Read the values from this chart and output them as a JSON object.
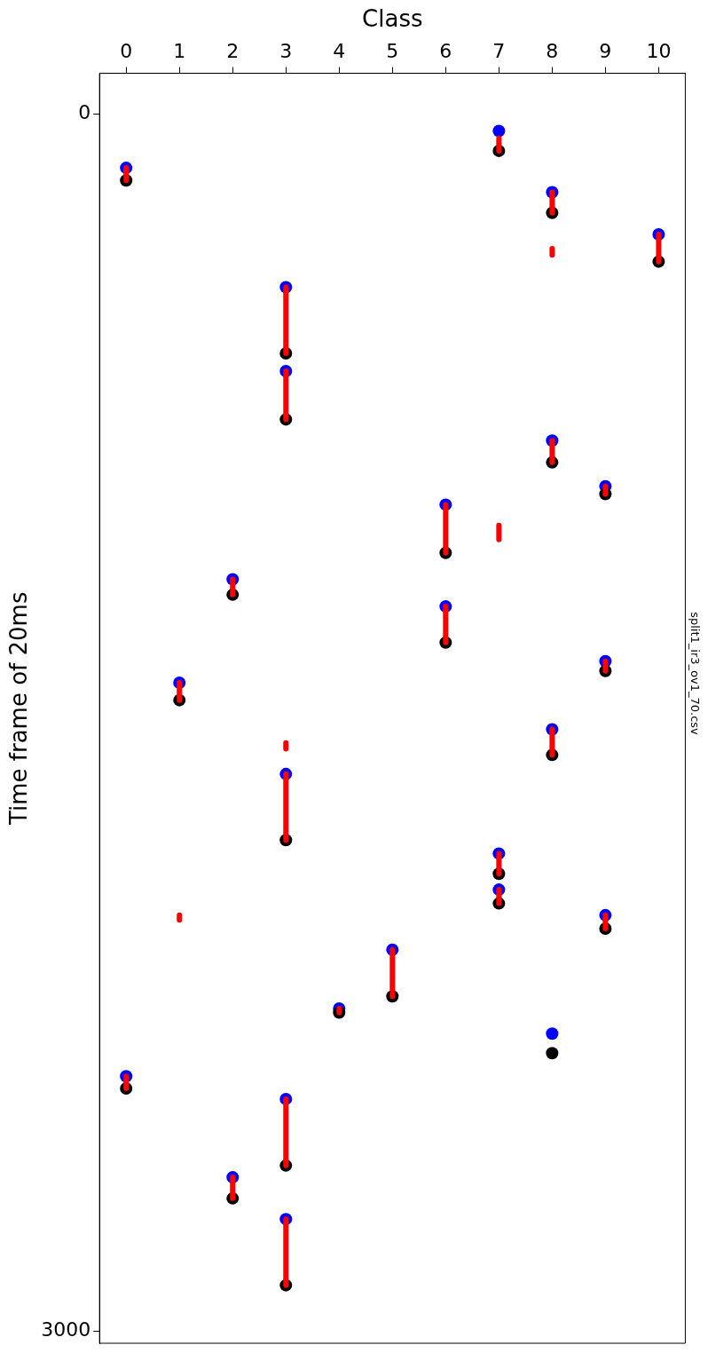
{
  "chart_data": {
    "type": "scatter",
    "title": "split1_ir3_ov1_70.csv",
    "xlabel": "Class",
    "ylabel": "Time frame of 20ms",
    "xlim": [
      -0.5,
      10.5
    ],
    "xticks": [
      0,
      1,
      2,
      3,
      4,
      5,
      6,
      7,
      8,
      9,
      10
    ],
    "ylim": [
      3030,
      -100
    ],
    "yticks": [
      0,
      3000
    ],
    "grid": false,
    "legend": false,
    "marker": "circle",
    "series": [
      {
        "color": "#0000ff",
        "x": [
          0,
          7,
          8,
          10,
          3,
          3,
          8,
          9,
          6,
          2,
          6,
          9,
          1,
          8,
          3,
          7,
          7,
          9,
          5,
          4,
          8,
          0,
          3,
          2,
          3
        ],
        "values": [
          133,
          42,
          193,
          297,
          427,
          634,
          805,
          918,
          963,
          1147,
          1214,
          1349,
          1402,
          1517,
          1627,
          1823,
          1912,
          1975,
          2060,
          2205,
          2267,
          2372,
          2428,
          2621,
          2724
        ]
      },
      {
        "color": "#000000",
        "x": [
          0,
          7,
          8,
          10,
          3,
          3,
          8,
          9,
          6,
          2,
          6,
          9,
          1,
          8,
          3,
          7,
          7,
          9,
          5,
          4,
          8,
          0,
          3,
          2,
          3
        ],
        "values": [
          164,
          91,
          244,
          364,
          590,
          753,
          859,
          937,
          1082,
          1185,
          1303,
          1373,
          1445,
          1580,
          1790,
          1873,
          1946,
          2008,
          2175,
          2215,
          2315,
          2402,
          2592,
          2673,
          2887
        ]
      },
      {
        "type": "line",
        "color": "#ff0000",
        "marker": "none",
        "x": [
          0,
          0,
          null,
          7,
          7,
          null,
          8,
          8,
          null,
          8,
          8,
          null,
          10,
          10,
          null,
          3,
          3,
          null,
          3,
          3,
          null,
          8,
          8,
          null,
          9,
          9,
          null,
          6,
          6,
          null,
          7,
          7,
          null,
          2,
          2,
          null,
          6,
          6,
          null,
          9,
          9,
          null,
          1,
          1,
          null,
          8,
          8,
          null,
          3,
          3,
          null,
          3,
          3,
          null,
          7,
          7,
          null,
          7,
          7,
          null,
          9,
          9,
          null,
          1,
          1,
          null,
          5,
          5,
          null,
          4,
          4,
          null,
          0,
          0,
          null,
          3,
          3,
          null,
          2,
          2,
          null,
          3,
          3
        ],
        "values": [
          133,
          164,
          null,
          60,
          91,
          null,
          193,
          244,
          null,
          332,
          348,
          null,
          297,
          364,
          null,
          427,
          590,
          null,
          634,
          753,
          null,
          805,
          859,
          null,
          918,
          937,
          null,
          963,
          1082,
          null,
          1014,
          1049,
          null,
          1147,
          1185,
          null,
          1214,
          1303,
          null,
          1349,
          1373,
          null,
          1402,
          1445,
          null,
          1517,
          1580,
          null,
          1550,
          1565,
          null,
          1627,
          1790,
          null,
          1823,
          1873,
          null,
          1912,
          1946,
          null,
          1975,
          2008,
          null,
          1975,
          1987,
          null,
          2060,
          2175,
          null,
          2205,
          2215,
          null,
          2372,
          2402,
          null,
          2428,
          2592,
          null,
          2621,
          2673,
          null,
          2724,
          2887
        ]
      }
    ]
  }
}
